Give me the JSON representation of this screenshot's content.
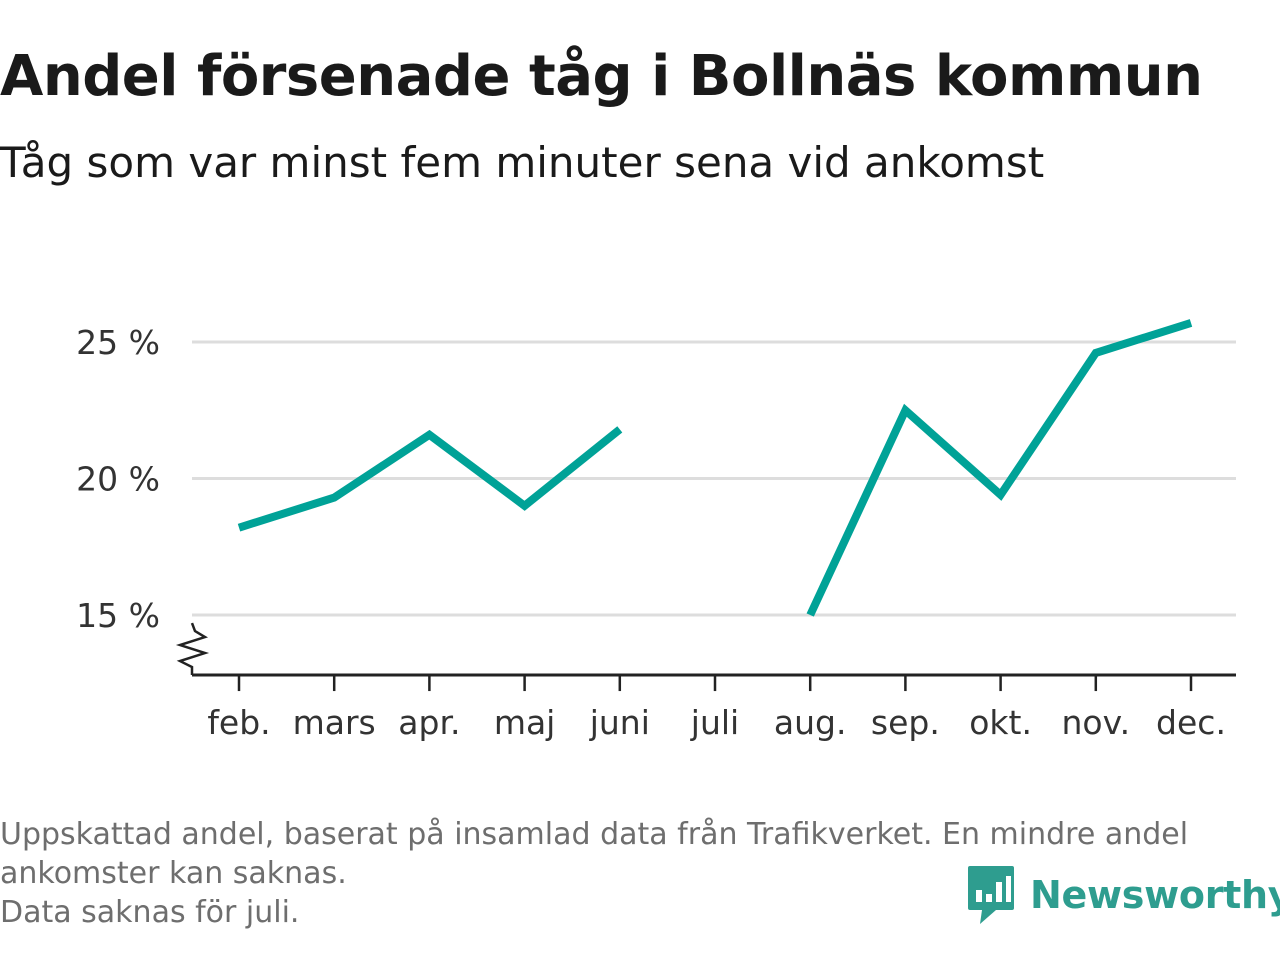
{
  "chart_data": {
    "type": "line",
    "title": "Andel försenade tåg i Bollnäs kommun",
    "subtitle": "Tåg som var minst fem minuter sena vid ankomst",
    "categories": [
      "feb.",
      "mars",
      "apr.",
      "maj",
      "juni",
      "juli",
      "aug.",
      "sep.",
      "okt.",
      "nov.",
      "dec."
    ],
    "series": [
      {
        "values": [
          18.2,
          19.3,
          21.6,
          19.0,
          21.8,
          null,
          15.0,
          22.5,
          19.4,
          24.6,
          25.7
        ]
      }
    ],
    "yticks": [
      15,
      20,
      25
    ],
    "ytick_labels": [
      "15 %",
      "20 %",
      "25 %"
    ],
    "ylim": [
      12.8,
      27
    ],
    "grid": true,
    "y_axis_break": true,
    "line_color": "#00a297",
    "footnote": [
      "Uppskattad andel, baserat på insamlad data från Trafikverket. En mindre andel",
      "ankomster kan saknas.",
      "Data saknas för juli."
    ]
  },
  "brand": {
    "name": "Newsworthy",
    "color": "#2e9d8f",
    "icon": "newsworthy-logo-icon"
  }
}
